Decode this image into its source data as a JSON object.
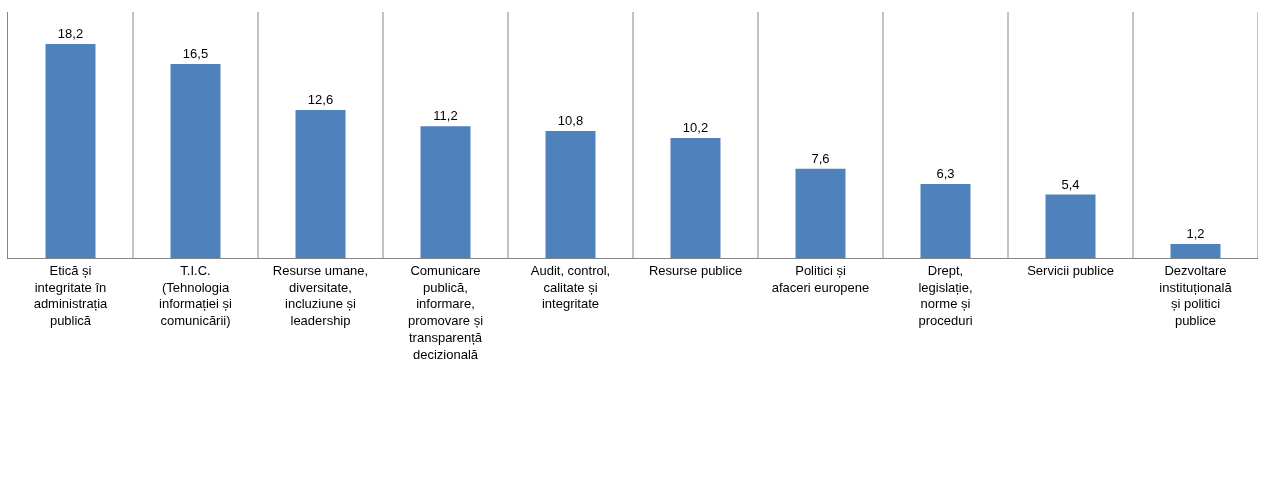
{
  "chart_data": {
    "type": "bar",
    "categories": [
      "Etică și integritate în administrația publică",
      "T.I.C. (Tehnologia informației și comunicării)",
      "Resurse umane, diversitate, incluziune și leadership",
      "Comunicare publică, informare, promovare și transparență decizională",
      "Audit, control, calitate și integritate",
      "Resurse publice",
      "Politici și afaceri europene",
      "Drept, legislație, norme și proceduri",
      "Servicii publice",
      "Dezvoltare instituțională și politici publice"
    ],
    "values": [
      18.2,
      16.5,
      12.6,
      11.2,
      10.8,
      10.2,
      7.6,
      6.3,
      5.4,
      1.2
    ],
    "value_labels": [
      "18,2",
      "16,5",
      "12,6",
      "11,2",
      "10,8",
      "10,2",
      "7,6",
      "6,3",
      "5,4",
      "1,2"
    ],
    "color": "#4f81bd",
    "grid": "x",
    "tick_labels": "x"
  }
}
